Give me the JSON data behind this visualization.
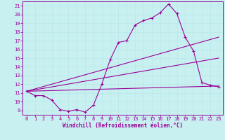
{
  "xlabel": "Windchill (Refroidissement éolien,°C)",
  "bg_color": "#c8f0f0",
  "line_color": "#990099",
  "grid_color": "#b8e8e8",
  "xlim": [
    -0.5,
    23.5
  ],
  "ylim": [
    8.5,
    21.5
  ],
  "yticks": [
    9,
    10,
    11,
    12,
    13,
    14,
    15,
    16,
    17,
    18,
    19,
    20,
    21
  ],
  "xticks": [
    0,
    1,
    2,
    3,
    4,
    5,
    6,
    7,
    8,
    9,
    10,
    11,
    12,
    13,
    14,
    15,
    16,
    17,
    18,
    19,
    20,
    21,
    22,
    23
  ],
  "series1_x": [
    0,
    1,
    2,
    3,
    4,
    5,
    6,
    7,
    8,
    9,
    10,
    11,
    12,
    13,
    14,
    15,
    16,
    17,
    18,
    19,
    20,
    21,
    22,
    23
  ],
  "series1_y": [
    11.2,
    10.7,
    10.7,
    10.2,
    9.1,
    8.9,
    9.1,
    8.8,
    9.6,
    12.0,
    14.8,
    16.8,
    17.0,
    18.8,
    19.3,
    19.6,
    20.2,
    21.2,
    20.1,
    17.4,
    15.8,
    12.2,
    11.9,
    11.7
  ],
  "series2_x": [
    0,
    23
  ],
  "series2_y": [
    11.2,
    17.4
  ],
  "series3_x": [
    0,
    23
  ],
  "series3_y": [
    11.2,
    15.0
  ],
  "series4_x": [
    0,
    23
  ],
  "series4_y": [
    11.2,
    11.8
  ]
}
